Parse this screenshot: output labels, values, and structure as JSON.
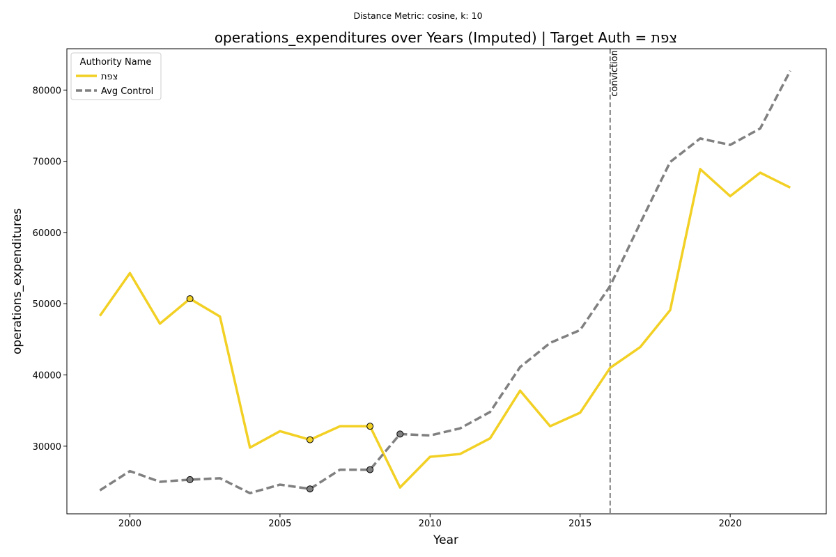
{
  "suptitle": "Distance Metric: cosine, k: 10",
  "chart_data": {
    "type": "line",
    "title": "operations_expenditures over Years (Imputed) | Target Auth = צפת",
    "xlabel": "Year",
    "ylabel": "operations_expenditures",
    "xlim": [
      1997.9,
      2023.2
    ],
    "ylim": [
      20500,
      85800
    ],
    "xticks": [
      2000,
      2005,
      2010,
      2015,
      2020
    ],
    "yticks": [
      30000,
      40000,
      50000,
      60000,
      70000,
      80000
    ],
    "grid": false,
    "legend": {
      "title": "Authority Name",
      "placement": "top-left"
    },
    "x": [
      1999,
      2000,
      2001,
      2002,
      2003,
      2004,
      2005,
      2006,
      2007,
      2008,
      2009,
      2010,
      2011,
      2012,
      2013,
      2014,
      2015,
      2016,
      2017,
      2018,
      2019,
      2020,
      2021,
      2022
    ],
    "series": [
      {
        "name": "צפת",
        "color": "#f2d024",
        "style": "solid",
        "values": [
          48300,
          54300,
          47200,
          50700,
          48200,
          29800,
          32100,
          30900,
          32800,
          32800,
          24200,
          28500,
          28900,
          31100,
          37800,
          32800,
          34700,
          41000,
          43900,
          49100,
          68900,
          65100,
          68400,
          66300
        ],
        "imputed_x": [
          2002,
          2006,
          2008
        ]
      },
      {
        "name": "Avg Control",
        "color": "#808080",
        "style": "dashed",
        "values": [
          23800,
          26500,
          25000,
          25300,
          25500,
          23400,
          24600,
          24000,
          26700,
          26700,
          31700,
          31500,
          32500,
          34800,
          41100,
          44500,
          46300,
          52500,
          61300,
          69900,
          73200,
          72300,
          74600,
          82700
        ],
        "imputed_x": [
          2002,
          2006,
          2008,
          2009
        ]
      }
    ],
    "annotations": [
      {
        "type": "vline",
        "x": 2016,
        "label": "conviction"
      }
    ]
  }
}
